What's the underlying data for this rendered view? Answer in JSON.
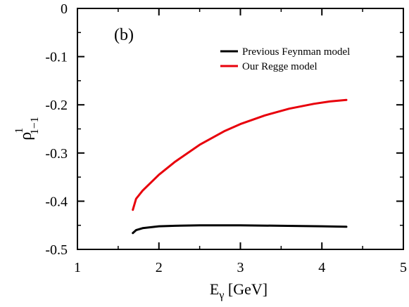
{
  "chart_data": {
    "type": "line",
    "title": "",
    "panel_label": "(b)",
    "xlabel": {
      "main": "E",
      "sub": "γ",
      "rest": " [GeV]"
    },
    "ylabel": {
      "main": "ρ",
      "sup": "1",
      "sub": "1−1"
    },
    "xlim": [
      1,
      5
    ],
    "ylim": [
      -0.5,
      0
    ],
    "xticks": [
      1,
      2,
      3,
      4,
      5
    ],
    "yticks": [
      0,
      -0.1,
      -0.2,
      -0.3,
      -0.4,
      -0.5
    ],
    "xtick_labels": [
      "1",
      "2",
      "3",
      "4",
      "5"
    ],
    "ytick_labels": [
      "0",
      "-0.1",
      "-0.2",
      "-0.3",
      "-0.4",
      "-0.5"
    ],
    "grid": false,
    "legend_position": "top-right",
    "series": [
      {
        "name": "Previous Feynman model",
        "color": "#000000",
        "x": [
          1.68,
          1.72,
          1.8,
          2.0,
          2.2,
          2.5,
          3.0,
          3.5,
          4.0,
          4.3
        ],
        "y": [
          -0.466,
          -0.46,
          -0.456,
          -0.452,
          -0.451,
          -0.45,
          -0.45,
          -0.451,
          -0.452,
          -0.453
        ]
      },
      {
        "name": "Our Regge model",
        "color": "#e8000b",
        "x": [
          1.68,
          1.72,
          1.8,
          2.0,
          2.2,
          2.5,
          2.8,
          3.0,
          3.3,
          3.6,
          3.9,
          4.1,
          4.3
        ],
        "y": [
          -0.418,
          -0.395,
          -0.378,
          -0.345,
          -0.318,
          -0.283,
          -0.255,
          -0.24,
          -0.222,
          -0.208,
          -0.198,
          -0.193,
          -0.19
        ]
      }
    ]
  }
}
